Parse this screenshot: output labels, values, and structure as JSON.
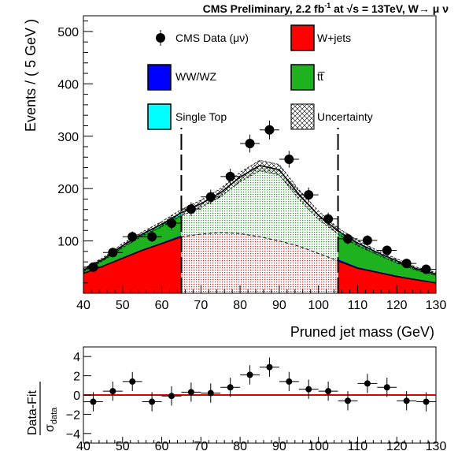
{
  "header": {
    "prefix": "CMS Preliminary, 2.2 fb",
    "sup": "-1",
    "mid": " at  ",
    "sqrt_s": "s",
    "suffix": " = 13TeV, W→  μ  ν"
  },
  "legend": {
    "data": "CMS Data (μν)",
    "wjets": "W+jets",
    "wwwz": "WW/WZ",
    "ttbar": "tt̅",
    "singletop": "Single Top",
    "uncertainty": "Uncertainty"
  },
  "colors": {
    "wjets": "#ff0000",
    "wwwz": "#0000ff",
    "ttbar": "#1fb21f",
    "singletop": "#00ffff",
    "ratio_line": "#e00000",
    "blind_wjets": "#f5d0d0",
    "blind_other": "#d8f0d8"
  },
  "chart_data": [
    {
      "type": "area",
      "name": "main",
      "xlabel": "Pruned jet mass (GeV)",
      "ylabel": "Events / ( 5 GeV )",
      "xlim": [
        40,
        130
      ],
      "ylim": [
        0,
        530
      ],
      "xticks": [
        40,
        50,
        60,
        70,
        80,
        90,
        100,
        110,
        120,
        130
      ],
      "yticks": [
        100,
        200,
        300,
        400,
        500
      ],
      "blinded_region": [
        65,
        105
      ],
      "data_points": {
        "x": [
          42.5,
          47.5,
          52.5,
          57.5,
          62.5,
          67.5,
          72.5,
          77.5,
          82.5,
          87.5,
          92.5,
          97.5,
          102.5,
          107.5,
          112.5,
          117.5,
          122.5,
          127.5
        ],
        "y": [
          50,
          78,
          108,
          108,
          134,
          161,
          184,
          223,
          286,
          312,
          256,
          188,
          142,
          104,
          101,
          82,
          57,
          46
        ],
        "err": [
          7,
          9,
          10,
          10,
          12,
          13,
          14,
          15,
          17,
          18,
          16,
          14,
          12,
          10,
          10,
          9,
          8,
          7
        ]
      },
      "series": [
        {
          "name": "W+jets",
          "x": [
            40,
            45,
            50,
            55,
            60,
            65,
            70,
            75,
            80,
            85,
            90,
            95,
            100,
            105,
            110,
            115,
            120,
            125,
            130
          ],
          "values": [
            38,
            52,
            67,
            82,
            95,
            108,
            113,
            116,
            114,
            108,
            100,
            90,
            76,
            62,
            48,
            40,
            32,
            26,
            20
          ]
        },
        {
          "name": "WW/WZ",
          "x": [
            40,
            45,
            50,
            55,
            60,
            65,
            70,
            75,
            80,
            85,
            90,
            95,
            100,
            105,
            110,
            115,
            120,
            125,
            130
          ],
          "values": [
            1,
            1,
            2,
            2,
            2,
            3,
            3,
            3,
            4,
            5,
            5,
            4,
            4,
            3,
            2,
            2,
            2,
            1,
            1
          ]
        },
        {
          "name": "tt̅",
          "x": [
            40,
            45,
            50,
            55,
            60,
            65,
            70,
            75,
            80,
            85,
            90,
            95,
            100,
            105,
            110,
            115,
            120,
            125,
            130
          ],
          "values": [
            4,
            11,
            20,
            27,
            33,
            40,
            52,
            70,
            100,
            126,
            126,
            91,
            65,
            51,
            44,
            34,
            26,
            19,
            15
          ]
        },
        {
          "name": "Single Top",
          "x": [
            40,
            45,
            50,
            55,
            60,
            65,
            70,
            75,
            80,
            85,
            90,
            95,
            100,
            105,
            110,
            115,
            120,
            125,
            130
          ],
          "values": [
            1,
            1,
            2,
            2,
            2,
            3,
            3,
            3,
            4,
            5,
            5,
            4,
            4,
            3,
            2,
            2,
            2,
            1,
            1
          ]
        }
      ],
      "uncertainty": {
        "x": [
          40,
          45,
          50,
          55,
          60,
          65,
          70,
          75,
          80,
          85,
          90,
          95,
          100,
          105,
          110,
          115,
          120,
          125,
          130
        ],
        "values": [
          3,
          3,
          4,
          4,
          5,
          6,
          7,
          8,
          9,
          10,
          10,
          9,
          8,
          6,
          5,
          4,
          4,
          3,
          3
        ]
      }
    },
    {
      "type": "scatter",
      "name": "ratio",
      "ylabel": "Data-Fit",
      "ylabel_denominator": "σ",
      "ylabel_denominator_sub": "data",
      "xlim": [
        40,
        130
      ],
      "ylim": [
        -5,
        5
      ],
      "xticks": [
        40,
        50,
        60,
        70,
        80,
        90,
        100,
        110,
        120,
        130
      ],
      "yticks": [
        4,
        2,
        0,
        -2,
        -4
      ],
      "x": [
        42.5,
        47.5,
        52.5,
        57.5,
        62.5,
        67.5,
        72.5,
        77.5,
        82.5,
        87.5,
        92.5,
        97.5,
        102.5,
        107.5,
        112.5,
        117.5,
        122.5,
        127.5
      ],
      "y": [
        -0.7,
        0.4,
        1.4,
        -0.7,
        -0.1,
        0.3,
        0.2,
        0.8,
        2.1,
        2.9,
        1.4,
        0.6,
        0.4,
        -0.6,
        1.2,
        0.8,
        -0.6,
        -0.7
      ],
      "err": [
        1,
        1,
        1,
        1,
        1,
        1,
        1,
        1,
        1,
        1,
        1,
        1,
        1,
        1,
        1,
        1,
        1,
        1
      ]
    }
  ]
}
